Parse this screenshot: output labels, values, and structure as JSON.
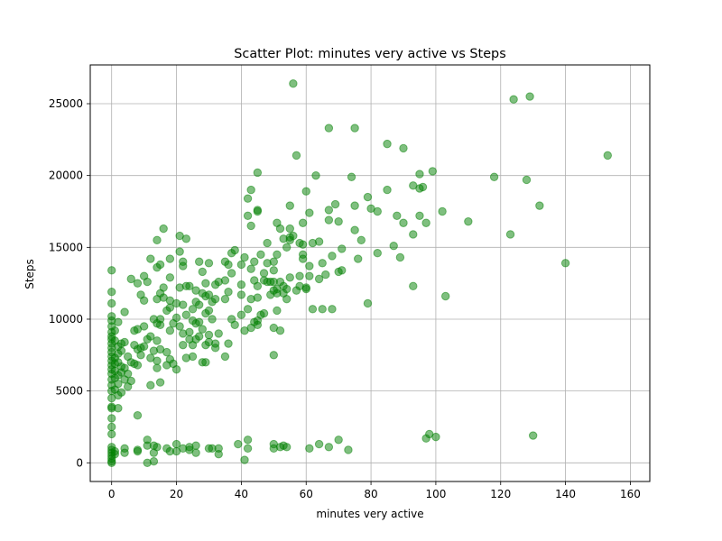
{
  "chart_data": {
    "type": "scatter",
    "title": "Scatter Plot: minutes very active vs Steps",
    "xlabel": "minutes very active",
    "ylabel": "Steps",
    "xlim": [
      -6.6,
      166
    ],
    "ylim": [
      -1300,
      27700
    ],
    "xticks": [
      0,
      20,
      40,
      60,
      80,
      100,
      120,
      140,
      160
    ],
    "yticks": [
      0,
      5000,
      10000,
      15000,
      20000,
      25000
    ],
    "grid": true,
    "marker_color": "#008000",
    "marker_alpha": 0.5,
    "points": [
      [
        0,
        13400
      ],
      [
        0,
        11900
      ],
      [
        0,
        11100
      ],
      [
        0,
        10200
      ],
      [
        0,
        9900
      ],
      [
        0,
        9500
      ],
      [
        0,
        9100
      ],
      [
        0,
        8800
      ],
      [
        0,
        8600
      ],
      [
        0,
        8300
      ],
      [
        0,
        8000
      ],
      [
        0,
        7700
      ],
      [
        0,
        7400
      ],
      [
        0,
        7100
      ],
      [
        0,
        6800
      ],
      [
        0,
        6500
      ],
      [
        0,
        6200
      ],
      [
        0,
        5800
      ],
      [
        0,
        5400
      ],
      [
        0,
        5000
      ],
      [
        0,
        4500
      ],
      [
        0,
        3900
      ],
      [
        0,
        3800
      ],
      [
        0,
        3100
      ],
      [
        0,
        2500
      ],
      [
        0,
        2000
      ],
      [
        0,
        1100
      ],
      [
        0,
        900
      ],
      [
        0,
        700
      ],
      [
        0,
        500
      ],
      [
        0,
        300
      ],
      [
        0,
        100
      ],
      [
        0,
        0
      ],
      [
        1,
        9200
      ],
      [
        1,
        8500
      ],
      [
        1,
        7300
      ],
      [
        1,
        6900
      ],
      [
        1,
        6400
      ],
      [
        1,
        5900
      ],
      [
        1,
        5100
      ],
      [
        1,
        800
      ],
      [
        1,
        600
      ],
      [
        2,
        9800
      ],
      [
        2,
        8100
      ],
      [
        2,
        7600
      ],
      [
        2,
        7000
      ],
      [
        2,
        6100
      ],
      [
        2,
        5500
      ],
      [
        2,
        4700
      ],
      [
        2,
        3800
      ],
      [
        3,
        8300
      ],
      [
        3,
        7800
      ],
      [
        3,
        6700
      ],
      [
        3,
        6300
      ],
      [
        3,
        4900
      ],
      [
        4,
        10500
      ],
      [
        4,
        8400
      ],
      [
        4,
        6600
      ],
      [
        4,
        5800
      ],
      [
        4,
        1000
      ],
      [
        4,
        700
      ],
      [
        5,
        7400
      ],
      [
        5,
        6200
      ],
      [
        5,
        5300
      ],
      [
        6,
        12800
      ],
      [
        6,
        7000
      ],
      [
        6,
        5700
      ],
      [
        7,
        9200
      ],
      [
        7,
        8200
      ],
      [
        7,
        6900
      ],
      [
        8,
        12500
      ],
      [
        8,
        9300
      ],
      [
        8,
        7900
      ],
      [
        8,
        6800
      ],
      [
        8,
        3300
      ],
      [
        8,
        900
      ],
      [
        8,
        800
      ],
      [
        9,
        11700
      ],
      [
        9,
        8000
      ],
      [
        9,
        7500
      ],
      [
        10,
        13000
      ],
      [
        10,
        11300
      ],
      [
        10,
        9500
      ],
      [
        10,
        8100
      ],
      [
        11,
        12600
      ],
      [
        11,
        8600
      ],
      [
        11,
        1600
      ],
      [
        11,
        1200
      ],
      [
        11,
        0
      ],
      [
        12,
        14200
      ],
      [
        12,
        8800
      ],
      [
        12,
        7300
      ],
      [
        12,
        5400
      ],
      [
        13,
        10000
      ],
      [
        13,
        7800
      ],
      [
        13,
        1200
      ],
      [
        13,
        700
      ],
      [
        13,
        100
      ],
      [
        14,
        15500
      ],
      [
        14,
        13600
      ],
      [
        14,
        11400
      ],
      [
        14,
        9700
      ],
      [
        14,
        8500
      ],
      [
        14,
        7100
      ],
      [
        14,
        6600
      ],
      [
        14,
        1100
      ],
      [
        15,
        13800
      ],
      [
        15,
        11800
      ],
      [
        15,
        10000
      ],
      [
        15,
        9600
      ],
      [
        15,
        7900
      ],
      [
        15,
        5600
      ],
      [
        16,
        16300
      ],
      [
        16,
        12200
      ],
      [
        16,
        11500
      ],
      [
        17,
        10600
      ],
      [
        17,
        7700
      ],
      [
        17,
        6800
      ],
      [
        17,
        1000
      ],
      [
        18,
        14200
      ],
      [
        18,
        12900
      ],
      [
        18,
        11300
      ],
      [
        18,
        10800
      ],
      [
        18,
        9200
      ],
      [
        18,
        7200
      ],
      [
        18,
        800
      ],
      [
        19,
        9700
      ],
      [
        19,
        6900
      ],
      [
        20,
        11100
      ],
      [
        20,
        10100
      ],
      [
        20,
        6500
      ],
      [
        20,
        1300
      ],
      [
        20,
        800
      ],
      [
        21,
        15800
      ],
      [
        21,
        14700
      ],
      [
        21,
        12200
      ],
      [
        21,
        9500
      ],
      [
        22,
        14000
      ],
      [
        22,
        13700
      ],
      [
        22,
        11000
      ],
      [
        22,
        9000
      ],
      [
        22,
        8200
      ],
      [
        22,
        1000
      ],
      [
        23,
        15600
      ],
      [
        23,
        12300
      ],
      [
        23,
        10300
      ],
      [
        23,
        7300
      ],
      [
        24,
        12300
      ],
      [
        24,
        9100
      ],
      [
        24,
        8600
      ],
      [
        24,
        1100
      ],
      [
        24,
        900
      ],
      [
        25,
        10700
      ],
      [
        25,
        9900
      ],
      [
        25,
        8200
      ],
      [
        25,
        7400
      ],
      [
        26,
        12000
      ],
      [
        26,
        11200
      ],
      [
        26,
        9700
      ],
      [
        26,
        8600
      ],
      [
        26,
        1200
      ],
      [
        26,
        700
      ],
      [
        27,
        14000
      ],
      [
        27,
        11000
      ],
      [
        27,
        9800
      ],
      [
        27,
        8800
      ],
      [
        28,
        13300
      ],
      [
        28,
        11800
      ],
      [
        28,
        9300
      ],
      [
        28,
        7000
      ],
      [
        29,
        12500
      ],
      [
        29,
        11600
      ],
      [
        29,
        10400
      ],
      [
        29,
        8200
      ],
      [
        29,
        7000
      ],
      [
        30,
        13900
      ],
      [
        30,
        11700
      ],
      [
        30,
        10600
      ],
      [
        30,
        8900
      ],
      [
        30,
        8400
      ],
      [
        30,
        1000
      ],
      [
        31,
        11200
      ],
      [
        31,
        10000
      ],
      [
        31,
        1000
      ],
      [
        32,
        12400
      ],
      [
        32,
        11400
      ],
      [
        32,
        8300
      ],
      [
        32,
        8000
      ],
      [
        33,
        12600
      ],
      [
        33,
        9000
      ],
      [
        33,
        1000
      ],
      [
        33,
        600
      ],
      [
        35,
        14000
      ],
      [
        35,
        12700
      ],
      [
        35,
        11400
      ],
      [
        35,
        7400
      ],
      [
        36,
        13800
      ],
      [
        36,
        11900
      ],
      [
        36,
        8300
      ],
      [
        37,
        14600
      ],
      [
        37,
        13200
      ],
      [
        37,
        10000
      ],
      [
        38,
        14800
      ],
      [
        38,
        9600
      ],
      [
        39,
        1300
      ],
      [
        40,
        13800
      ],
      [
        40,
        12400
      ],
      [
        40,
        11700
      ],
      [
        40,
        10300
      ],
      [
        41,
        14300
      ],
      [
        41,
        9200
      ],
      [
        41,
        200
      ],
      [
        42,
        18400
      ],
      [
        42,
        17200
      ],
      [
        42,
        10700
      ],
      [
        42,
        1600
      ],
      [
        42,
        1000
      ],
      [
        43,
        19000
      ],
      [
        43,
        16500
      ],
      [
        43,
        13500
      ],
      [
        43,
        11400
      ],
      [
        43,
        9400
      ],
      [
        44,
        14000
      ],
      [
        44,
        12700
      ],
      [
        44,
        9800
      ],
      [
        45,
        20200
      ],
      [
        45,
        17500
      ],
      [
        45,
        17600
      ],
      [
        45,
        12300
      ],
      [
        45,
        11500
      ],
      [
        45,
        9900
      ],
      [
        45,
        9600
      ],
      [
        46,
        14500
      ],
      [
        46,
        10300
      ],
      [
        47,
        13200
      ],
      [
        47,
        12700
      ],
      [
        47,
        10400
      ],
      [
        48,
        15300
      ],
      [
        48,
        13900
      ],
      [
        48,
        12600
      ],
      [
        49,
        12600
      ],
      [
        49,
        11700
      ],
      [
        50,
        14000
      ],
      [
        50,
        13400
      ],
      [
        50,
        12600
      ],
      [
        50,
        12000
      ],
      [
        50,
        9400
      ],
      [
        50,
        7500
      ],
      [
        50,
        1300
      ],
      [
        50,
        1000
      ],
      [
        51,
        16700
      ],
      [
        51,
        14500
      ],
      [
        51,
        12100
      ],
      [
        51,
        11800
      ],
      [
        51,
        10600
      ],
      [
        52,
        16300
      ],
      [
        52,
        12600
      ],
      [
        52,
        9200
      ],
      [
        52,
        1100
      ],
      [
        53,
        15600
      ],
      [
        53,
        12300
      ],
      [
        53,
        11800
      ],
      [
        53,
        1200
      ],
      [
        54,
        15000
      ],
      [
        54,
        12100
      ],
      [
        54,
        11400
      ],
      [
        54,
        1100
      ],
      [
        55,
        17900
      ],
      [
        55,
        16300
      ],
      [
        55,
        15700
      ],
      [
        55,
        15500
      ],
      [
        55,
        12900
      ],
      [
        56,
        26400
      ],
      [
        56,
        15800
      ],
      [
        57,
        21400
      ],
      [
        57,
        12000
      ],
      [
        58,
        15300
      ],
      [
        58,
        13000
      ],
      [
        58,
        12300
      ],
      [
        59,
        16700
      ],
      [
        59,
        15200
      ],
      [
        59,
        14500
      ],
      [
        59,
        14200
      ],
      [
        60,
        18900
      ],
      [
        60,
        12200
      ],
      [
        60,
        12100
      ],
      [
        61,
        17400
      ],
      [
        61,
        13700
      ],
      [
        61,
        13000
      ],
      [
        61,
        1000
      ],
      [
        62,
        15300
      ],
      [
        62,
        10700
      ],
      [
        63,
        20000
      ],
      [
        64,
        15400
      ],
      [
        64,
        12800
      ],
      [
        64,
        1300
      ],
      [
        65,
        13900
      ],
      [
        65,
        10700
      ],
      [
        66,
        13100
      ],
      [
        67,
        23300
      ],
      [
        67,
        17600
      ],
      [
        67,
        16900
      ],
      [
        67,
        1100
      ],
      [
        68,
        14400
      ],
      [
        68,
        10700
      ],
      [
        69,
        18000
      ],
      [
        70,
        16800
      ],
      [
        70,
        13300
      ],
      [
        70,
        1600
      ],
      [
        71,
        14900
      ],
      [
        71,
        13400
      ],
      [
        73,
        900
      ],
      [
        74,
        19900
      ],
      [
        75,
        23300
      ],
      [
        75,
        17900
      ],
      [
        75,
        16200
      ],
      [
        76,
        14200
      ],
      [
        77,
        15500
      ],
      [
        79,
        18500
      ],
      [
        79,
        11100
      ],
      [
        80,
        17700
      ],
      [
        82,
        17500
      ],
      [
        82,
        14600
      ],
      [
        85,
        22200
      ],
      [
        85,
        19000
      ],
      [
        87,
        15100
      ],
      [
        88,
        17200
      ],
      [
        89,
        14300
      ],
      [
        90,
        21900
      ],
      [
        90,
        16700
      ],
      [
        93,
        19300
      ],
      [
        93,
        15900
      ],
      [
        93,
        12300
      ],
      [
        95,
        20100
      ],
      [
        95,
        19100
      ],
      [
        95,
        17200
      ],
      [
        96,
        19200
      ],
      [
        97,
        16700
      ],
      [
        97,
        1700
      ],
      [
        98,
        2000
      ],
      [
        99,
        20300
      ],
      [
        100,
        1800
      ],
      [
        102,
        17500
      ],
      [
        103,
        11600
      ],
      [
        110,
        16800
      ],
      [
        118,
        19900
      ],
      [
        123,
        15900
      ],
      [
        124,
        25300
      ],
      [
        128,
        19700
      ],
      [
        129,
        25500
      ],
      [
        130,
        1900
      ],
      [
        132,
        17900
      ],
      [
        140,
        13900
      ],
      [
        153,
        21400
      ]
    ]
  }
}
